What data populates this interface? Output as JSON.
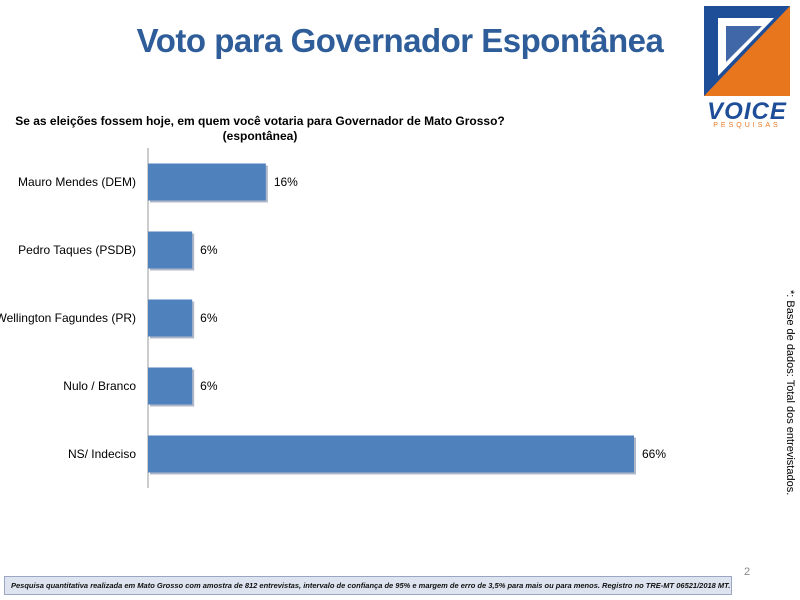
{
  "header": {
    "title": "Voto para Governador Espontânea"
  },
  "logo": {
    "name": "VOICE",
    "tagline": "PESQUISAS",
    "colors": {
      "blue": "#1f4e99",
      "orange": "#e8761d"
    }
  },
  "chart_data": {
    "type": "bar",
    "orientation": "horizontal",
    "title": "Se as eleições fossem hoje, em quem você votaria para Governador de Mato Grosso?",
    "subtitle": "(espontânea)",
    "categories": [
      "Mauro Mendes (DEM)",
      "Pedro Taques (PSDB)",
      "Wellington Fagundes (PR)",
      "Nulo / Branco",
      "NS/ Indeciso"
    ],
    "values": [
      16,
      6,
      6,
      6,
      66
    ],
    "data_labels": [
      "16%",
      "6%",
      "6%",
      "6%",
      "66%"
    ],
    "xlim": [
      0,
      66
    ],
    "grid": false,
    "legend": "none",
    "bar_color": "#4f81bd"
  },
  "side_note": "*: Base de dados: Total dos entrevistados.",
  "page_number": "2",
  "footer": "Pesquisa quantitativa realizada em Mato Grosso com amostra de 812 entrevistas, intervalo de confiança de 95% e margem de erro de 3,5% para mais ou para menos. Registro no TRE-MT 06521/2018 MT."
}
